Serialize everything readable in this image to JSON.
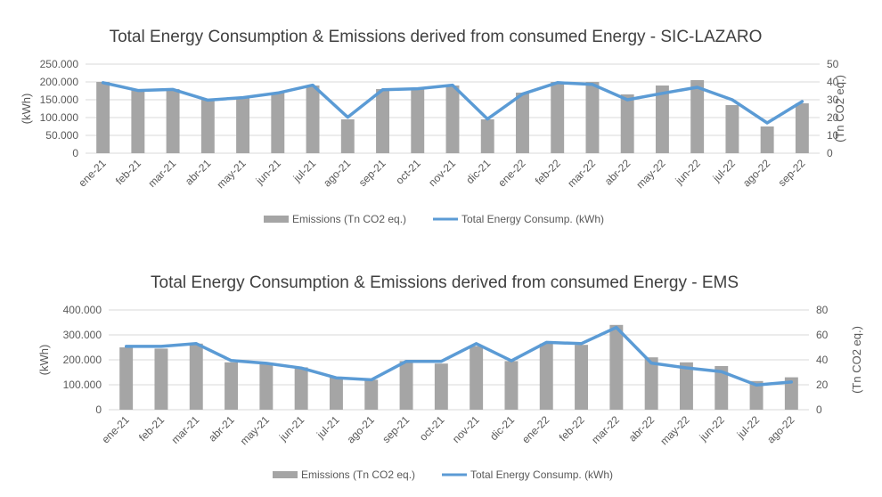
{
  "colors": {
    "bar": "#a5a5a5",
    "line": "#5b9bd5",
    "grid": "#d9d9d9",
    "text": "#595959"
  },
  "chart_data": [
    {
      "type": "bar",
      "title": "Total Energy Consumption & Emissions derived from consumed Energy - SIC-LAZARO",
      "categories": [
        "ene-21",
        "feb-21",
        "mar-21",
        "abr-21",
        "may-21",
        "jun-21",
        "jul-21",
        "ago-21",
        "sep-21",
        "oct-21",
        "nov-21",
        "dic-21",
        "ene-22",
        "feb-22",
        "mar-22",
        "abr-22",
        "may-22",
        "jun-22",
        "jul-22",
        "ago-22",
        "sep-22"
      ],
      "ylabel": "(kWh)",
      "y2label": "(Tn CO2 eq.)",
      "ylim": [
        0,
        250000
      ],
      "y2lim": [
        0,
        50
      ],
      "yticks": [
        "0",
        "50.000",
        "100.000",
        "150.000",
        "200.000",
        "250.000"
      ],
      "y2ticks": [
        "0",
        "10",
        "20",
        "30",
        "40",
        "50"
      ],
      "grid": true,
      "legend_position": "bottom",
      "series": [
        {
          "name": "Emissions (Tn CO2 eq.)",
          "type": "bar",
          "axis": "right",
          "values": [
            40,
            36,
            36,
            30,
            31,
            34,
            38,
            19,
            36,
            36,
            38,
            19,
            34,
            40,
            40,
            33,
            38,
            41,
            27,
            15,
            28
          ]
        },
        {
          "name": "Total Energy Consump. (kWh)",
          "type": "line",
          "axis": "left",
          "values": [
            198000,
            176000,
            179000,
            149000,
            156000,
            169000,
            191000,
            101000,
            178000,
            181000,
            191000,
            96000,
            166000,
            198000,
            193000,
            150000,
            168000,
            185000,
            150000,
            85000,
            145000
          ]
        }
      ]
    },
    {
      "type": "bar",
      "title": "Total Energy Consumption & Emissions derived from consumed Energy - EMS",
      "categories": [
        "ene-21",
        "feb-21",
        "mar-21",
        "abr-21",
        "may-21",
        "jun-21",
        "jul-21",
        "ago-21",
        "sep-21",
        "oct-21",
        "nov-21",
        "dic-21",
        "ene-22",
        "feb-22",
        "mar-22",
        "abr-22",
        "may-22",
        "jun-22",
        "jul-22",
        "ago-22"
      ],
      "ylabel": "(kWh)",
      "y2label": "(Tn CO2 eq.)",
      "ylim": [
        0,
        400000
      ],
      "y2lim": [
        0,
        80
      ],
      "yticks": [
        "0",
        "100.000",
        "200.000",
        "300.000",
        "400.000"
      ],
      "y2ticks": [
        "0",
        "20",
        "40",
        "60",
        "80"
      ],
      "grid": true,
      "legend_position": "bottom",
      "series": [
        {
          "name": "Emissions (Tn CO2 eq.)",
          "type": "bar",
          "axis": "right",
          "values": [
            50,
            49,
            53,
            38,
            37,
            34,
            26,
            24,
            39,
            37,
            51,
            39,
            53,
            52,
            68,
            42,
            38,
            35,
            23,
            26
          ]
        },
        {
          "name": "Total Energy Consump. (kWh)",
          "type": "line",
          "axis": "left",
          "values": [
            254000,
            254000,
            265000,
            197000,
            186000,
            167000,
            128000,
            120000,
            194000,
            194000,
            265000,
            196000,
            270000,
            265000,
            330000,
            187000,
            168000,
            153000,
            99000,
            111000
          ]
        }
      ]
    }
  ]
}
